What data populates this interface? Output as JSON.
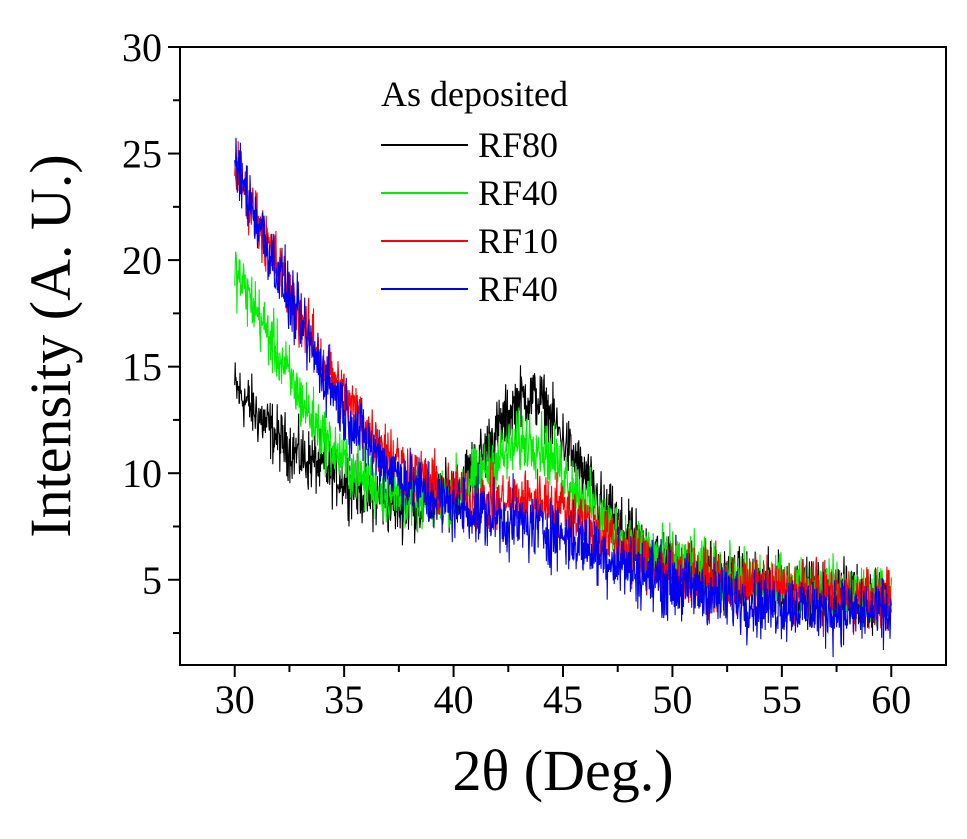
{
  "chart_data": {
    "type": "line",
    "title": "",
    "xlabel": "2θ (Deg.)",
    "ylabel": "Intensity (A. U.)",
    "xlim": [
      27.5,
      62.5
    ],
    "ylim": [
      1,
      30
    ],
    "xticks": [
      30,
      35,
      40,
      45,
      50,
      55,
      60
    ],
    "yticks": [
      5,
      10,
      15,
      20,
      25,
      30
    ],
    "xtick_labels": [
      "30",
      "35",
      "40",
      "45",
      "50",
      "55",
      "60"
    ],
    "ytick_labels": [
      "5",
      "10",
      "15",
      "20",
      "25",
      "30"
    ],
    "grid": false,
    "legend": {
      "title": "As deposited",
      "placement": "top-center",
      "entries": [
        "RF80",
        "RF40",
        "RF10",
        "RF40"
      ]
    },
    "x_range": [
      30,
      60
    ],
    "series": [
      {
        "name": "RF80",
        "color": "#000000",
        "noise": 0.9,
        "x": [
          30,
          31,
          32,
          33,
          34,
          35,
          36,
          37,
          38,
          39,
          40,
          41,
          42,
          43,
          43.5,
          44,
          45,
          46,
          47,
          48,
          49,
          50,
          52,
          54,
          56,
          58,
          60
        ],
        "y": [
          14.0,
          12.8,
          11.6,
          10.8,
          10.3,
          9.7,
          9.0,
          8.6,
          8.4,
          8.6,
          9.2,
          10.4,
          12.0,
          13.5,
          13.6,
          13.4,
          11.6,
          9.8,
          8.1,
          7.0,
          6.3,
          5.8,
          5.2,
          4.8,
          4.5,
          4.3,
          4.1
        ]
      },
      {
        "name": "RF40",
        "color": "#00ee00",
        "noise": 0.9,
        "x": [
          30,
          31,
          32,
          33,
          34,
          35,
          36,
          37,
          38,
          39,
          40,
          41,
          42,
          43,
          43.5,
          44,
          45,
          46,
          47,
          48,
          50,
          52,
          54,
          56,
          58,
          60
        ],
        "y": [
          19.5,
          17.6,
          15.5,
          13.5,
          11.8,
          10.5,
          9.6,
          9.0,
          8.8,
          8.8,
          9.2,
          9.8,
          10.6,
          11.4,
          11.6,
          11.3,
          10.1,
          8.8,
          7.6,
          6.8,
          5.9,
          5.2,
          4.8,
          4.6,
          4.4,
          4.3
        ]
      },
      {
        "name": "RF10",
        "color": "#ff0000",
        "noise": 0.9,
        "x": [
          30,
          31,
          32,
          33,
          34,
          35,
          36,
          37,
          38,
          39,
          40,
          41,
          42,
          43,
          44,
          45,
          46,
          47,
          48,
          50,
          52,
          54,
          56,
          58,
          60
        ],
        "y": [
          24.5,
          22.0,
          19.6,
          17.2,
          15.3,
          13.6,
          12.2,
          11.0,
          10.1,
          9.4,
          9.0,
          8.7,
          8.6,
          8.7,
          8.7,
          8.4,
          7.8,
          7.0,
          6.3,
          5.4,
          4.9,
          4.6,
          4.4,
          4.2,
          4.1
        ]
      },
      {
        "name": "RF40",
        "color": "#0000ee",
        "noise": 1.0,
        "x": [
          30,
          31,
          32,
          33,
          34,
          35,
          36,
          37,
          38,
          39,
          40,
          41,
          42,
          43,
          44,
          45,
          46,
          47,
          48,
          50,
          52,
          54,
          56,
          58,
          60
        ],
        "y": [
          24.5,
          22.0,
          19.4,
          17.0,
          14.8,
          13.0,
          11.5,
          10.3,
          9.5,
          8.9,
          8.5,
          8.2,
          7.9,
          7.6,
          7.4,
          7.1,
          6.6,
          6.1,
          5.6,
          4.8,
          4.3,
          3.9,
          3.7,
          3.5,
          3.4
        ]
      }
    ]
  }
}
